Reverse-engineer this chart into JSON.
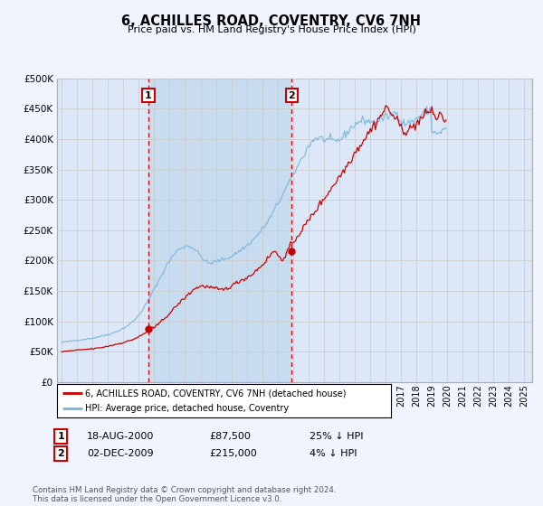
{
  "title": "6, ACHILLES ROAD, COVENTRY, CV6 7NH",
  "subtitle": "Price paid vs. HM Land Registry's House Price Index (HPI)",
  "background_color": "#f0f4ff",
  "plot_bg_color": "#dce8f8",
  "shade_color": "#c8dcf0",
  "grid_color": "#cccccc",
  "hpi_color": "#7ab8d8",
  "price_color": "#cc0000",
  "vline_color": "#cc0000",
  "sale1_x": 2000.625,
  "sale2_x": 2009.917,
  "sale1_price": 87500,
  "sale2_price": 215000,
  "ylim": [
    0,
    500000
  ],
  "yticks": [
    0,
    50000,
    100000,
    150000,
    200000,
    250000,
    300000,
    350000,
    400000,
    450000,
    500000
  ],
  "ytick_labels": [
    "£0",
    "£50K",
    "£100K",
    "£150K",
    "£200K",
    "£250K",
    "£300K",
    "£350K",
    "£400K",
    "£450K",
    "£500K"
  ],
  "legend_line1": "6, ACHILLES ROAD, COVENTRY, CV6 7NH (detached house)",
  "legend_line2": "HPI: Average price, detached house, Coventry",
  "sale1_date": "18-AUG-2000",
  "sale2_date": "02-DEC-2009",
  "sale1_pct": "25% ↓ HPI",
  "sale2_pct": "4% ↓ HPI",
  "sale1_price_str": "£87,500",
  "sale2_price_str": "£215,000",
  "footnote": "Contains HM Land Registry data © Crown copyright and database right 2024.\nThis data is licensed under the Open Government Licence v3.0.",
  "hpi_monthly": {
    "start_year": 1995,
    "start_month": 1,
    "values": [
      65000,
      65500,
      66000,
      66200,
      66500,
      66800,
      67000,
      67300,
      67600,
      67900,
      68200,
      68500,
      68800,
      69100,
      69400,
      69600,
      69900,
      70200,
      70500,
      70800,
      71100,
      71400,
      71700,
      72000,
      72300,
      72700,
      73200,
      73700,
      74200,
      74700,
      75200,
      75700,
      76200,
      76700,
      77200,
      77700,
      78200,
      78800,
      79500,
      80200,
      81000,
      81800,
      82600,
      83500,
      84400,
      85300,
      86300,
      87300,
      88400,
      89600,
      90900,
      92300,
      93800,
      95500,
      97200,
      99000,
      101000,
      103000,
      105000,
      107500,
      110000,
      113000,
      116000,
      119000,
      122500,
      126000,
      129500,
      133000,
      137000,
      141000,
      145000,
      149000,
      153000,
      157000,
      161000,
      165000,
      169000,
      173000,
      177000,
      181000,
      185000,
      189000,
      193000,
      197000,
      200000,
      203000,
      206000,
      209000,
      211500,
      214000,
      216000,
      218000,
      219500,
      221000,
      222000,
      223000,
      223500,
      224000,
      224000,
      224000,
      223500,
      222500,
      221000,
      219500,
      217500,
      215500,
      213000,
      210500,
      208000,
      205500,
      203000,
      200500,
      198500,
      197000,
      196000,
      195500,
      195500,
      196000,
      196800,
      197800,
      198500,
      199200,
      199800,
      200500,
      201000,
      201500,
      202000,
      202800,
      203500,
      204200,
      205000,
      206000,
      207000,
      208000,
      209500,
      211000,
      212500,
      214000,
      215500,
      217000,
      218500,
      220000,
      221500,
      223000,
      224500,
      226000,
      228000,
      230000,
      232000,
      234000,
      236500,
      239000,
      241500,
      244000,
      246500,
      249000,
      251500,
      254000,
      257000,
      260000,
      263000,
      266500,
      270000,
      273500,
      277500,
      281500,
      285500,
      289500,
      293000,
      297000,
      301000,
      305000,
      309000,
      313000,
      317000,
      321000,
      325000,
      329000,
      333000,
      337000,
      341000,
      345000,
      349000,
      353000,
      357000,
      361000,
      365000,
      369000,
      373000,
      377000,
      381000,
      385000,
      388000,
      391000,
      394000,
      397000,
      399000,
      400500,
      401500,
      402000,
      402000,
      401500,
      401000,
      400500,
      400000,
      399500,
      399000,
      398500,
      398000,
      397500,
      397000,
      396500,
      396000,
      396500,
      397000,
      398000,
      399000,
      400000,
      402000,
      404000,
      406000,
      408500,
      411000,
      413500,
      416000,
      418000,
      420000,
      422000,
      424000,
      425500,
      427000,
      428000,
      429000,
      430000,
      430500,
      431000,
      431000,
      430500,
      430000,
      429500,
      429000,
      428500,
      428000,
      428000,
      428500,
      429000,
      430000,
      431000,
      432000,
      433000,
      434000,
      435000,
      436000,
      437000,
      438000,
      439000,
      440000,
      441000,
      442000,
      443000,
      444000,
      445000,
      440000,
      435000,
      430000,
      428000,
      427000,
      426500,
      426000,
      426000,
      426500,
      427000,
      428000,
      429500,
      431000,
      432500,
      434000,
      435500,
      437000,
      438500,
      440000,
      441500,
      443000,
      444500,
      446000,
      447500,
      449000,
      450000,
      410000,
      412000,
      414000,
      412000,
      410000,
      408000,
      410000,
      412000,
      414000,
      415000,
      416000,
      415000
    ]
  },
  "price_monthly": {
    "start_year": 1995,
    "start_month": 1,
    "values": [
      50000,
      50200,
      50400,
      50600,
      50800,
      51000,
      51200,
      51400,
      51600,
      51800,
      52000,
      52200,
      52400,
      52600,
      52800,
      53000,
      53200,
      53400,
      53600,
      53800,
      54000,
      54200,
      54400,
      54600,
      54800,
      55000,
      55200,
      55500,
      55800,
      56100,
      56400,
      56800,
      57200,
      57600,
      58000,
      58500,
      59000,
      59500,
      60000,
      60500,
      61000,
      61500,
      62000,
      62500,
      63000,
      63500,
      64000,
      64500,
      65000,
      65600,
      66200,
      66800,
      67500,
      68200,
      69000,
      69800,
      70600,
      71500,
      72500,
      73500,
      74500,
      75500,
      76700,
      78000,
      79300,
      80700,
      82200,
      83700,
      85200,
      86800,
      88400,
      90000,
      87500,
      91000,
      93000,
      95000,
      97000,
      99000,
      101000,
      103000,
      105000,
      107000,
      109000,
      111000,
      113000,
      115000,
      117500,
      120000,
      122500,
      125000,
      127000,
      129000,
      131000,
      133000,
      135000,
      137000,
      139000,
      141000,
      143000,
      145000,
      147000,
      149000,
      151000,
      153000,
      154000,
      155000,
      156000,
      157000,
      157500,
      158000,
      158000,
      158000,
      157500,
      157000,
      156500,
      156000,
      155500,
      155000,
      154500,
      154000,
      153500,
      153000,
      152500,
      152000,
      152000,
      152000,
      152500,
      153000,
      154000,
      155000,
      156000,
      157000,
      158000,
      159000,
      160500,
      162000,
      163500,
      165000,
      166000,
      167000,
      168000,
      169000,
      170000,
      171000,
      172000,
      173000,
      174500,
      176000,
      177500,
      179000,
      181000,
      183000,
      185000,
      187000,
      189000,
      191000,
      193000,
      195000,
      197500,
      200000,
      202500,
      205000,
      208000,
      211000,
      214000,
      215000,
      214000,
      212000,
      210000,
      208000,
      206000,
      204500,
      203000,
      202000,
      201500,
      215000,
      218000,
      221000,
      224000,
      227000,
      230000,
      233000,
      236000,
      239000,
      242000,
      245000,
      248000,
      251000,
      254000,
      257000,
      260000,
      263000,
      266000,
      269000,
      272000,
      275000,
      278000,
      281000,
      284000,
      287000,
      290000,
      293000,
      296000,
      299000,
      302000,
      305000,
      308000,
      311000,
      314000,
      317000,
      320000,
      323000,
      326000,
      329000,
      332000,
      335000,
      338000,
      341000,
      344000,
      347000,
      350000,
      353500,
      357000,
      360500,
      364000,
      367500,
      371000,
      374500,
      378000,
      381000,
      384000,
      387000,
      390000,
      393000,
      396000,
      399000,
      402000,
      405000,
      408000,
      411000,
      414000,
      417000,
      420000,
      423000,
      426000,
      429000,
      432000,
      435000,
      438000,
      441000,
      444000,
      447000,
      450000,
      453000,
      450000,
      447000,
      444000,
      441000,
      438000,
      435000,
      432000,
      429000,
      426000,
      423000,
      420000,
      418000,
      416000,
      415000,
      414000,
      414000,
      415000,
      416000,
      418000,
      420000,
      422000,
      424000,
      426000,
      428000,
      430000,
      432000,
      434000,
      436000,
      438000,
      440000,
      442000,
      444000,
      446000,
      448000,
      450000,
      445000,
      440000,
      435000,
      430000,
      435000,
      440000,
      445000,
      440000,
      435000,
      430000,
      430000
    ]
  }
}
